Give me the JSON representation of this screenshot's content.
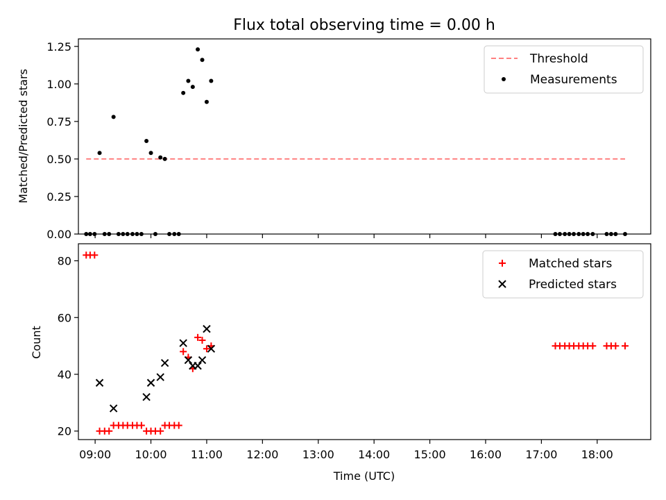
{
  "title": "Flux total observing time = 0.00 h",
  "x_axis": {
    "label": "Time (UTC)",
    "ticks": [
      "09:00",
      "10:00",
      "11:00",
      "12:00",
      "13:00",
      "14:00",
      "15:00",
      "16:00",
      "17:00",
      "18:00"
    ]
  },
  "chart_data": [
    {
      "type": "scatter",
      "ylabel": "Matched/Predicted stars",
      "xlim": [
        8.7,
        18.96
      ],
      "ylim": [
        0,
        1.3
      ],
      "yticks": [
        "0.00",
        "0.25",
        "0.50",
        "0.75",
        "1.00",
        "1.25"
      ],
      "legend_position": "top-right",
      "threshold": {
        "name": "Threshold",
        "value": 0.5,
        "x_range": [
          8.84,
          18.5
        ],
        "color": "#ff8080"
      },
      "series": [
        {
          "name": "Measurements",
          "color": "#000000",
          "x": [
            8.84,
            8.91,
            8.99,
            9.08,
            9.17,
            9.25,
            9.33,
            9.42,
            9.5,
            9.58,
            9.67,
            9.75,
            9.83,
            9.92,
            10.0,
            10.08,
            10.17,
            10.25,
            10.33,
            10.42,
            10.5,
            10.58,
            10.67,
            10.75,
            10.84,
            10.92,
            11.0,
            11.08,
            17.25,
            17.33,
            17.42,
            17.5,
            17.58,
            17.67,
            17.75,
            17.83,
            17.92,
            18.17,
            18.25,
            18.33,
            18.5
          ],
          "y": [
            0,
            0,
            0,
            0.54,
            0,
            0,
            0.78,
            0,
            0,
            0,
            0,
            0,
            0,
            0.62,
            0.54,
            0,
            0.51,
            0.5,
            0,
            0,
            0,
            0.94,
            1.02,
            0.98,
            1.23,
            1.16,
            0.88,
            1.02,
            0,
            0,
            0,
            0,
            0,
            0,
            0,
            0,
            0,
            0,
            0,
            0,
            0
          ]
        }
      ]
    },
    {
      "type": "scatter",
      "ylabel": "Count",
      "xlim": [
        8.7,
        18.96
      ],
      "ylim": [
        17,
        86
      ],
      "yticks": [
        20,
        40,
        60,
        80
      ],
      "legend_position": "top-right",
      "series": [
        {
          "name": "Matched stars",
          "marker": "+",
          "color": "#ff0000",
          "x": [
            8.84,
            8.91,
            8.99,
            9.08,
            9.17,
            9.25,
            9.33,
            9.42,
            9.5,
            9.58,
            9.67,
            9.75,
            9.83,
            9.92,
            10.0,
            10.08,
            10.17,
            10.25,
            10.33,
            10.42,
            10.5,
            10.58,
            10.67,
            10.75,
            10.84,
            10.92,
            11.0,
            11.08,
            17.25,
            17.33,
            17.42,
            17.5,
            17.58,
            17.67,
            17.75,
            17.83,
            17.92,
            18.17,
            18.25,
            18.33,
            18.5
          ],
          "y": [
            82,
            82,
            82,
            20,
            20,
            20,
            22,
            22,
            22,
            22,
            22,
            22,
            22,
            20,
            20,
            20,
            20,
            22,
            22,
            22,
            22,
            48,
            46,
            42,
            53,
            52,
            49,
            50,
            50,
            50,
            50,
            50,
            50,
            50,
            50,
            50,
            50,
            50,
            50,
            50,
            50
          ]
        },
        {
          "name": "Predicted stars",
          "marker": "x",
          "color": "#000000",
          "x": [
            9.08,
            9.33,
            9.92,
            10.0,
            10.17,
            10.25,
            10.58,
            10.67,
            10.75,
            10.84,
            10.92,
            11.0,
            11.08
          ],
          "y": [
            37,
            28,
            32,
            37,
            39,
            44,
            51,
            45,
            43,
            43,
            45,
            56,
            49
          ]
        }
      ]
    }
  ]
}
